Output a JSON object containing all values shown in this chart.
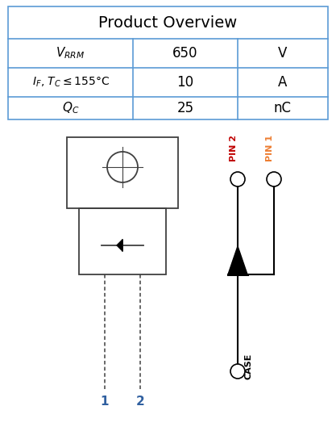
{
  "title": "Product Overview",
  "table_rows": [
    [
      "$V_{RRM}$",
      "650",
      "V"
    ],
    [
      "$I_F$, $T_C$$\\leq$155°C",
      "10",
      "A"
    ],
    [
      "$Q_C$",
      "25",
      "nC"
    ]
  ],
  "background_color": "#ffffff",
  "table_border_color": "#5b9bd5",
  "text_color": "#000000",
  "pin_color_2": "#c00000",
  "pin_color_1": "#ed7d31",
  "case_color": "#000000",
  "fig_width": 4.17,
  "fig_height": 5.29,
  "dpi": 100
}
